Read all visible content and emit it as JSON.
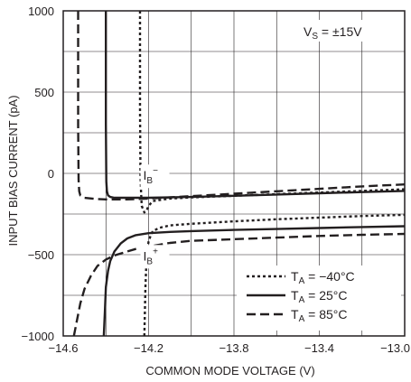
{
  "chart_data": {
    "type": "line",
    "xlabel": "COMMON MODE VOLTAGE (V)",
    "ylabel": "INPUT BIAS CURRENT (pA)",
    "xlim": [
      -14.6,
      -13.0
    ],
    "ylim": [
      -1000,
      1000
    ],
    "x_ticks": [
      "−14.6",
      "−14.2",
      "−13.8",
      "−13.4",
      "−13.0"
    ],
    "y_ticks": [
      "1000",
      "500",
      "0",
      "−500",
      "−1000"
    ],
    "x_tick_values": [
      -14.6,
      -14.2,
      -13.8,
      -13.4,
      -13.0
    ],
    "y_tick_values": [
      1000,
      500,
      0,
      -500,
      -1000
    ],
    "grid": true,
    "legend_position": "bottom-right",
    "condition": {
      "main": "V",
      "sub": "S",
      "rest": " = ±15V"
    },
    "annotations": [
      {
        "main": "I",
        "sub": "B",
        "sup": "−",
        "x": -14.2,
        "y": -40
      },
      {
        "main": "I",
        "sub": "B",
        "sup": "+",
        "x": -14.2,
        "y": -535
      }
    ],
    "series": [
      {
        "name": "T_A = −40°C",
        "legend_main": "T",
        "legend_sub": "A",
        "legend_rest": " = −40°C",
        "style": "dotted",
        "curves": [
          {
            "label": "I_B−",
            "x": [
              -14.24,
              -14.24,
              -14.238,
              -14.235,
              -14.232,
              -14.22,
              -14.21,
              -14.2,
              -14.18,
              -14.1,
              -14.0,
              -13.8,
              -13.6,
              -13.4,
              -13.2,
              -13.0
            ],
            "y": [
              1000,
              400,
              0,
              -120,
              -200,
              -240,
              -230,
              -200,
              -170,
              -155,
              -148,
              -138,
              -128,
              -118,
              -108,
              -98
            ]
          },
          {
            "label": "I_B+",
            "x": [
              -14.22,
              -14.215,
              -14.21,
              -14.205,
              -14.2,
              -14.19,
              -14.18,
              -14.15,
              -14.1,
              -14.0,
              -13.8,
              -13.6,
              -13.4,
              -13.2,
              -13.0
            ],
            "y": [
              -1000,
              -700,
              -540,
              -460,
              -420,
              -380,
              -355,
              -335,
              -320,
              -310,
              -295,
              -282,
              -272,
              -262,
              -255
            ]
          }
        ]
      },
      {
        "name": "T_A = 25°C",
        "legend_main": "T",
        "legend_sub": "A",
        "legend_rest": " = 25°C",
        "style": "solid",
        "curves": [
          {
            "label": "I_B−",
            "x": [
              -14.4,
              -14.4,
              -14.398,
              -14.395,
              -14.39,
              -14.38,
              -14.36,
              -14.3,
              -14.2,
              -14.0,
              -13.8,
              -13.6,
              -13.4,
              -13.2,
              -13.0
            ],
            "y": [
              1000,
              300,
              -50,
              -110,
              -135,
              -145,
              -150,
              -150,
              -150,
              -145,
              -138,
              -130,
              -122,
              -115,
              -108
            ]
          },
          {
            "label": "I_B+",
            "x": [
              -14.41,
              -14.405,
              -14.4,
              -14.39,
              -14.38,
              -14.36,
              -14.33,
              -14.3,
              -14.26,
              -14.2,
              -14.1,
              -14.0,
              -13.8,
              -13.6,
              -13.4,
              -13.2,
              -13.0
            ],
            "y": [
              -1000,
              -850,
              -700,
              -600,
              -540,
              -480,
              -430,
              -400,
              -380,
              -368,
              -360,
              -355,
              -348,
              -342,
              -336,
              -330,
              -325
            ]
          }
        ]
      },
      {
        "name": "T_A = 85°C",
        "legend_main": "T",
        "legend_sub": "A",
        "legend_rest": " = 85°C",
        "style": "dashed",
        "curves": [
          {
            "label": "I_B−",
            "x": [
              -14.53,
              -14.53,
              -14.528,
              -14.525,
              -14.52,
              -14.5,
              -14.45,
              -14.4,
              -14.3,
              -14.2,
              -14.0,
              -13.8,
              -13.6,
              -13.4,
              -13.2,
              -13.0
            ],
            "y": [
              1000,
              300,
              -40,
              -110,
              -135,
              -150,
              -157,
              -160,
              -160,
              -155,
              -140,
              -125,
              -110,
              -95,
              -80,
              -68
            ]
          },
          {
            "label": "I_B+",
            "x": [
              -14.55,
              -14.52,
              -14.5,
              -14.47,
              -14.44,
              -14.4,
              -14.36,
              -14.3,
              -14.26,
              -14.2,
              -14.1,
              -14.0,
              -13.8,
              -13.6,
              -13.4,
              -13.2,
              -13.0
            ],
            "y": [
              -1000,
              -800,
              -710,
              -630,
              -570,
              -530,
              -505,
              -480,
              -465,
              -450,
              -428,
              -415,
              -405,
              -395,
              -385,
              -378,
              -372
            ]
          }
        ]
      }
    ]
  }
}
